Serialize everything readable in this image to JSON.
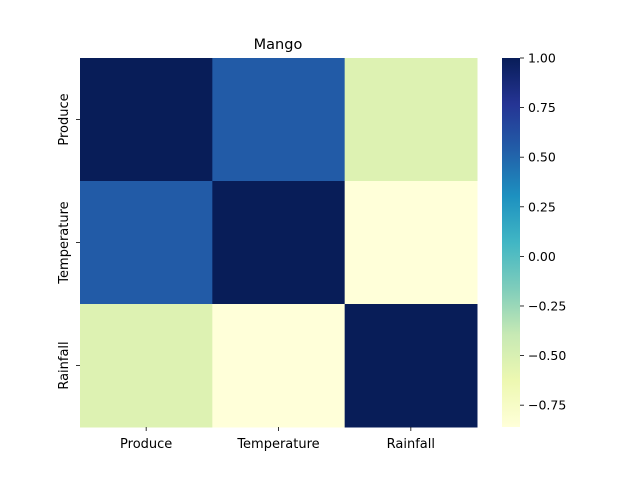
{
  "chart_data": {
    "type": "heatmap",
    "title": "Mango",
    "x_categories": [
      "Produce",
      "Temperature",
      "Rainfall"
    ],
    "y_categories": [
      "Produce",
      "Temperature",
      "Rainfall"
    ],
    "values": [
      [
        1.0,
        0.55,
        -0.53
      ],
      [
        0.55,
        1.0,
        -0.86
      ],
      [
        -0.53,
        -0.86,
        1.0
      ]
    ],
    "colorbar": {
      "min": -0.86,
      "max": 1.0,
      "ticks": [
        1.0,
        0.75,
        0.5,
        0.25,
        0.0,
        -0.25,
        -0.5,
        -0.75
      ],
      "tick_labels": [
        "1.00",
        "0.75",
        "0.50",
        "0.25",
        "0.00",
        "−0.25",
        "−0.50",
        "−0.75"
      ]
    },
    "colormap": "YlGnBu",
    "colormap_stops": [
      "#ffffd9",
      "#edf8b1",
      "#c7e9b4",
      "#7fcdbb",
      "#41b6c4",
      "#1d91c0",
      "#225ea8",
      "#253494",
      "#081d58"
    ],
    "grid": false,
    "legend": "colorbar-right"
  }
}
